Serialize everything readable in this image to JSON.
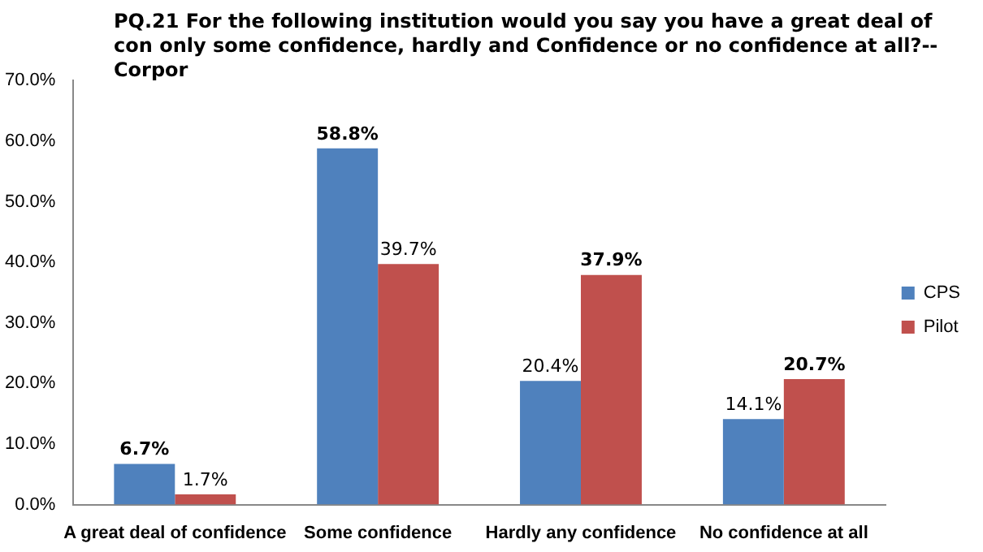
{
  "chart_data": {
    "type": "bar",
    "title": "PQ.21 For the following institution would you say you have a great deal of con only some confidence, hardly and Confidence or no confidence at all?--Corpor",
    "categories": [
      "A great deal of confidence",
      "Some confidence",
      "Hardly any confidence",
      "No confidence at all"
    ],
    "series": [
      {
        "name": "CPS",
        "color": "#4f81bd",
        "values": [
          6.7,
          58.8,
          20.4,
          14.1
        ],
        "value_labels": [
          "6.7%",
          "58.8%",
          "20.4%",
          "14.1%"
        ]
      },
      {
        "name": "Pilot",
        "color": "#c0504d",
        "values": [
          1.7,
          39.7,
          37.9,
          20.7
        ],
        "value_labels": [
          "1.7%",
          "39.7%",
          "37.9%",
          "20.7%"
        ]
      }
    ],
    "ylim": [
      0,
      70
    ],
    "yticks": [
      {
        "value": 0,
        "label": "0.0%"
      },
      {
        "value": 10,
        "label": "10.0%"
      },
      {
        "value": 20,
        "label": "20.0%"
      },
      {
        "value": 30,
        "label": "30.0%"
      },
      {
        "value": 40,
        "label": "40.0%"
      },
      {
        "value": 50,
        "label": "50.0%"
      },
      {
        "value": 60,
        "label": "60.0%"
      },
      {
        "value": 70,
        "label": "70.0%"
      }
    ],
    "grid": false,
    "legend": "right"
  }
}
